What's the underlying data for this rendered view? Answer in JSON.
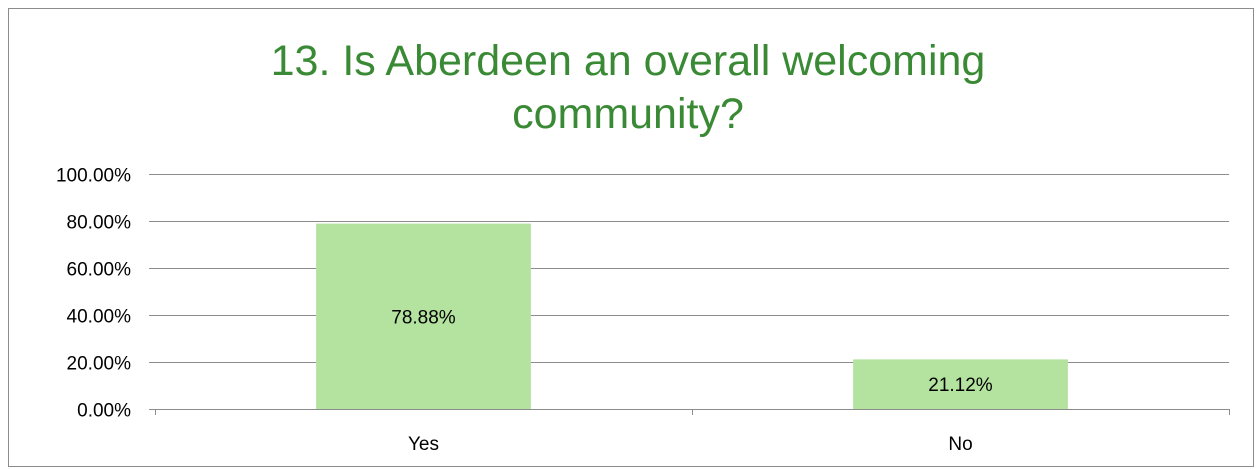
{
  "chart_data": {
    "type": "bar",
    "title_lines": [
      "13. Is Aberdeen an overall welcoming",
      "community?"
    ],
    "categories": [
      "Yes",
      "No"
    ],
    "values": [
      78.88,
      21.12
    ],
    "data_labels": [
      "78.88%",
      "21.12%"
    ],
    "ylim": [
      0,
      100
    ],
    "yticks": [
      0,
      20,
      40,
      60,
      80,
      100
    ],
    "ytick_labels": [
      "0.00%",
      "20.00%",
      "40.00%",
      "60.00%",
      "80.00%",
      "100.00%"
    ],
    "grid": true,
    "legend": "none",
    "colors": {
      "bar": "#b4e3a0",
      "title": "#3a8a35",
      "grid": "#8c8c8c"
    }
  }
}
